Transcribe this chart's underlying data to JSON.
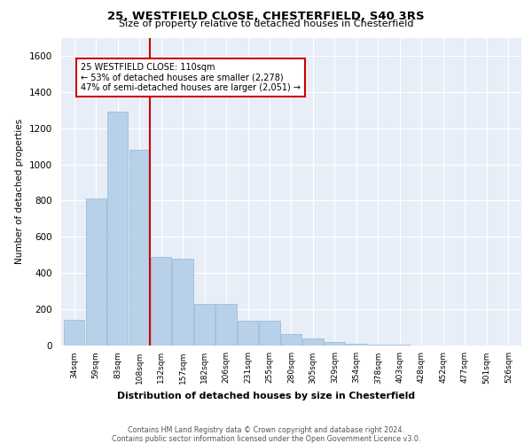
{
  "title1": "25, WESTFIELD CLOSE, CHESTERFIELD, S40 3RS",
  "title2": "Size of property relative to detached houses in Chesterfield",
  "xlabel": "Distribution of detached houses by size in Chesterfield",
  "ylabel": "Number of detached properties",
  "categories": [
    "34sqm",
    "59sqm",
    "83sqm",
    "108sqm",
    "132sqm",
    "157sqm",
    "182sqm",
    "206sqm",
    "231sqm",
    "255sqm",
    "280sqm",
    "305sqm",
    "329sqm",
    "354sqm",
    "378sqm",
    "403sqm",
    "428sqm",
    "452sqm",
    "477sqm",
    "501sqm",
    "526sqm"
  ],
  "values": [
    140,
    810,
    1290,
    1080,
    490,
    480,
    230,
    230,
    135,
    135,
    65,
    38,
    18,
    8,
    5,
    3,
    2,
    1,
    1,
    1,
    1
  ],
  "bar_color": "#b8d0e8",
  "bar_edge_color": "#90b8d8",
  "vline_x": 3.5,
  "vline_color": "#cc0000",
  "annotation_text": "25 WESTFIELD CLOSE: 110sqm\n← 53% of detached houses are smaller (2,278)\n47% of semi-detached houses are larger (2,051) →",
  "annotation_box_color": "white",
  "annotation_box_edgecolor": "#cc0000",
  "ylim": [
    0,
    1700
  ],
  "yticks": [
    0,
    200,
    400,
    600,
    800,
    1000,
    1200,
    1400,
    1600
  ],
  "footer1": "Contains HM Land Registry data © Crown copyright and database right 2024.",
  "footer2": "Contains public sector information licensed under the Open Government Licence v3.0.",
  "bg_color": "#e8eef8",
  "fig_color": "#ffffff"
}
